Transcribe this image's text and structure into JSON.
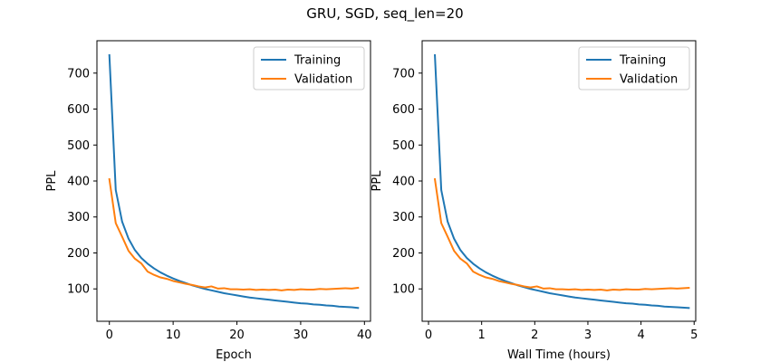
{
  "figure": {
    "title": "GRU, SGD, seq_len=20"
  },
  "chart_data": [
    {
      "type": "line",
      "xlabel": "Epoch",
      "ylabel": "PPL",
      "xlim": [
        -1.95,
        40.95
      ],
      "ylim": [
        10,
        790
      ],
      "xticks": [
        0,
        10,
        20,
        30,
        40
      ],
      "yticks": [
        100,
        200,
        300,
        400,
        500,
        600,
        700
      ],
      "legend": "top-right",
      "grid": false,
      "series": [
        {
          "name": "Training",
          "color": "#1f77b4",
          "x": [
            0,
            1,
            2,
            3,
            4,
            5,
            6,
            7,
            8,
            9,
            10,
            11,
            12,
            13,
            14,
            15,
            16,
            17,
            18,
            19,
            20,
            21,
            22,
            23,
            24,
            25,
            26,
            27,
            28,
            29,
            30,
            31,
            32,
            33,
            34,
            35,
            36,
            37,
            38,
            39
          ],
          "y": [
            750,
            375,
            287,
            240,
            208,
            186,
            170,
            157,
            146,
            137,
            129,
            122,
            116,
            110,
            105,
            100,
            96,
            92,
            88,
            85,
            82,
            79,
            76,
            74,
            72,
            70,
            68,
            66,
            64,
            62,
            60,
            59,
            57,
            56,
            54,
            53,
            51,
            50,
            49,
            47
          ]
        },
        {
          "name": "Validation",
          "color": "#ff7f0e",
          "x": [
            0,
            1,
            2,
            3,
            4,
            5,
            6,
            7,
            8,
            9,
            10,
            11,
            12,
            13,
            14,
            15,
            16,
            17,
            18,
            19,
            20,
            21,
            22,
            23,
            24,
            25,
            26,
            27,
            28,
            29,
            30,
            31,
            32,
            33,
            34,
            35,
            36,
            37,
            38,
            39
          ],
          "y": [
            405,
            283,
            245,
            206,
            184,
            171,
            148,
            139,
            132,
            128,
            122,
            118,
            114,
            111,
            107,
            104,
            107,
            101,
            102,
            99,
            99,
            98,
            99,
            97,
            98,
            97,
            98,
            96,
            98,
            97,
            99,
            98,
            98,
            100,
            99,
            100,
            101,
            102,
            101,
            103
          ]
        }
      ]
    },
    {
      "type": "line",
      "xlabel": "Wall Time (hours)",
      "ylabel": "PPL",
      "xlim": [
        -0.12,
        5.03
      ],
      "ylim": [
        10,
        790
      ],
      "xticks": [
        0,
        1,
        2,
        3,
        4,
        5
      ],
      "yticks": [
        100,
        200,
        300,
        400,
        500,
        600,
        700
      ],
      "legend": "top-right",
      "grid": false,
      "series": [
        {
          "name": "Training",
          "color": "#1f77b4",
          "x": [
            0.12,
            0.24,
            0.36,
            0.48,
            0.6,
            0.72,
            0.84,
            0.96,
            1.08,
            1.2,
            1.32,
            1.44,
            1.56,
            1.68,
            1.8,
            1.92,
            2.04,
            2.16,
            2.28,
            2.4,
            2.52,
            2.64,
            2.76,
            2.88,
            3.0,
            3.12,
            3.24,
            3.36,
            3.48,
            3.6,
            3.72,
            3.84,
            3.96,
            4.08,
            4.2,
            4.32,
            4.44,
            4.56,
            4.68,
            4.9
          ],
          "y": [
            750,
            375,
            287,
            240,
            208,
            186,
            170,
            157,
            146,
            137,
            129,
            122,
            116,
            110,
            105,
            100,
            96,
            92,
            88,
            85,
            82,
            79,
            76,
            74,
            72,
            70,
            68,
            66,
            64,
            62,
            60,
            59,
            57,
            56,
            54,
            53,
            51,
            50,
            49,
            47
          ]
        },
        {
          "name": "Validation",
          "color": "#ff7f0e",
          "x": [
            0.12,
            0.24,
            0.36,
            0.48,
            0.6,
            0.72,
            0.84,
            0.96,
            1.08,
            1.2,
            1.32,
            1.44,
            1.56,
            1.68,
            1.8,
            1.92,
            2.04,
            2.16,
            2.28,
            2.4,
            2.52,
            2.64,
            2.76,
            2.88,
            3.0,
            3.12,
            3.24,
            3.36,
            3.48,
            3.6,
            3.72,
            3.84,
            3.96,
            4.08,
            4.2,
            4.32,
            4.44,
            4.56,
            4.68,
            4.9
          ],
          "y": [
            405,
            283,
            245,
            206,
            184,
            171,
            148,
            139,
            132,
            128,
            122,
            118,
            114,
            111,
            107,
            104,
            107,
            101,
            102,
            99,
            99,
            98,
            99,
            97,
            98,
            97,
            98,
            96,
            98,
            97,
            99,
            98,
            98,
            100,
            99,
            100,
            101,
            102,
            101,
            103
          ]
        }
      ]
    }
  ]
}
